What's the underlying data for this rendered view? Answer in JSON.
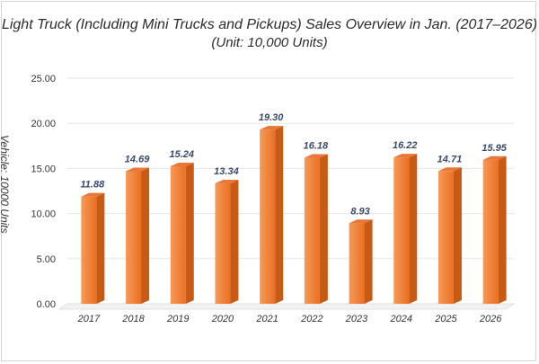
{
  "chart_data": {
    "type": "bar",
    "title": "Light Truck (Including Mini Trucks and Pickups) Sales Overview in Jan. (2017–2026)",
    "subtitle": "(Unit: 10,000 Units)",
    "xlabel": "",
    "ylabel": "Vehicle: 10000 Units",
    "categories": [
      "2017",
      "2018",
      "2019",
      "2020",
      "2021",
      "2022",
      "2023",
      "2024",
      "2025",
      "2026"
    ],
    "values": [
      11.88,
      14.69,
      15.24,
      13.34,
      19.3,
      16.18,
      8.93,
      16.22,
      14.71,
      15.95
    ],
    "value_labels": [
      "11.88",
      "14.69",
      "15.24",
      "13.34",
      "19.30",
      "16.18",
      "8.93",
      "16.22",
      "14.71",
      "15.95"
    ],
    "yticks": [
      "0.00",
      "5.00",
      "10.00",
      "15.00",
      "20.00",
      "25.00"
    ],
    "ylim": [
      0,
      25
    ],
    "grid": true,
    "legend": "none",
    "colors": {
      "bar_front": "#f07a2a",
      "bar_light": "#f6a56b",
      "bar_side": "#c75a14",
      "bar_top": "#e8773a",
      "label": "#3a4a6b",
      "grid": "#e6e6e6"
    }
  }
}
